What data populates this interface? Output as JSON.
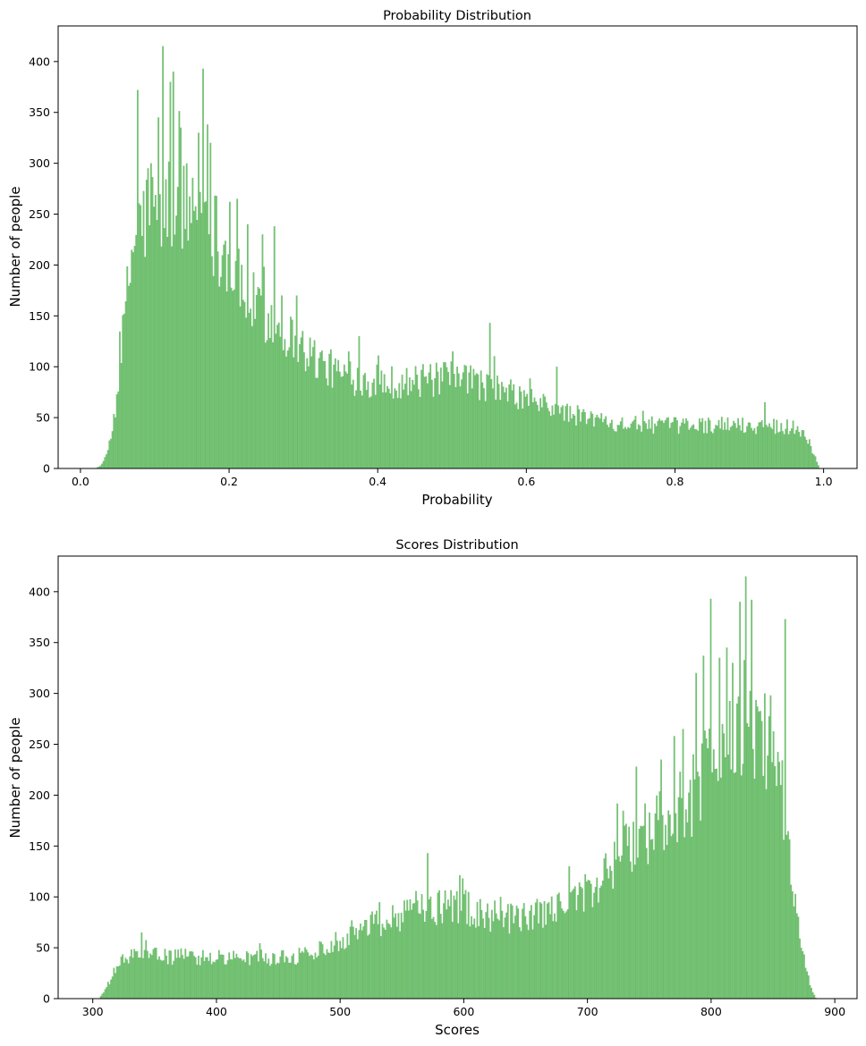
{
  "figure": {
    "bar_color": "#5cb85c",
    "bar_edge_color": "#2e8b2e",
    "bar_opacity": 0.85
  },
  "chart_data": [
    {
      "type": "histogram",
      "title": "Probability Distribution",
      "xlabel": "Probability",
      "ylabel": "Number of people",
      "xlim": [
        -0.03,
        1.045
      ],
      "ylim": [
        0,
        435
      ],
      "xticks": [
        0.0,
        0.2,
        0.4,
        0.6,
        0.8,
        1.0
      ],
      "xtick_labels": [
        "0.0",
        "0.2",
        "0.4",
        "0.6",
        "0.8",
        "1.0"
      ],
      "yticks": [
        0,
        50,
        100,
        150,
        200,
        250,
        300,
        350,
        400
      ],
      "ytick_labels": [
        "0",
        "50",
        "100",
        "150",
        "200",
        "250",
        "300",
        "350",
        "400"
      ],
      "grid": false,
      "legend": "none",
      "bins": 500,
      "range": [
        0.0,
        1.0
      ],
      "profile": [
        [
          0.0,
          0
        ],
        [
          0.02,
          0
        ],
        [
          0.03,
          4
        ],
        [
          0.04,
          25
        ],
        [
          0.05,
          75
        ],
        [
          0.06,
          150
        ],
        [
          0.07,
          215
        ],
        [
          0.08,
          240
        ],
        [
          0.1,
          255
        ],
        [
          0.12,
          262
        ],
        [
          0.14,
          255
        ],
        [
          0.16,
          260
        ],
        [
          0.18,
          235
        ],
        [
          0.2,
          200
        ],
        [
          0.22,
          170
        ],
        [
          0.25,
          150
        ],
        [
          0.3,
          118
        ],
        [
          0.33,
          100
        ],
        [
          0.36,
          90
        ],
        [
          0.4,
          85
        ],
        [
          0.45,
          85
        ],
        [
          0.5,
          88
        ],
        [
          0.53,
          85
        ],
        [
          0.56,
          78
        ],
        [
          0.6,
          68
        ],
        [
          0.65,
          55
        ],
        [
          0.7,
          47
        ],
        [
          0.75,
          43
        ],
        [
          0.8,
          42
        ],
        [
          0.85,
          43
        ],
        [
          0.9,
          42
        ],
        [
          0.95,
          42
        ],
        [
          0.97,
          38
        ],
        [
          0.98,
          28
        ],
        [
          0.99,
          8
        ],
        [
          0.995,
          0
        ],
        [
          1.0,
          0
        ]
      ],
      "spikes": [
        [
          0.11,
          415
        ],
        [
          0.125,
          390
        ],
        [
          0.12,
          380
        ],
        [
          0.0775,
          372
        ],
        [
          0.165,
          393
        ],
        [
          0.17,
          338
        ],
        [
          0.158,
          330
        ],
        [
          0.135,
          335
        ],
        [
          0.175,
          320
        ],
        [
          0.095,
          300
        ],
        [
          0.09,
          295
        ],
        [
          0.105,
          345
        ],
        [
          0.2,
          262
        ],
        [
          0.21,
          265
        ],
        [
          0.245,
          230
        ],
        [
          0.26,
          238
        ],
        [
          0.55,
          143
        ],
        [
          0.375,
          130
        ],
        [
          0.29,
          170
        ],
        [
          0.27,
          170
        ],
        [
          0.225,
          240
        ],
        [
          0.64,
          100
        ],
        [
          0.5,
          115
        ],
        [
          0.92,
          65
        ]
      ]
    },
    {
      "type": "histogram",
      "title": "Scores Distribution",
      "xlabel": "Scores",
      "ylabel": "Number of people",
      "xlim": [
        272,
        918
      ],
      "ylim": [
        0,
        435
      ],
      "xticks": [
        300,
        400,
        500,
        600,
        700,
        800,
        900
      ],
      "xtick_labels": [
        "300",
        "400",
        "500",
        "600",
        "700",
        "800",
        "900"
      ],
      "yticks": [
        0,
        50,
        100,
        150,
        200,
        250,
        300,
        350,
        400
      ],
      "ytick_labels": [
        "0",
        "50",
        "100",
        "150",
        "200",
        "250",
        "300",
        "350",
        "400"
      ],
      "grid": false,
      "legend": "none",
      "bins": 500,
      "range": [
        300,
        890
      ],
      "profile": [
        [
          300,
          0
        ],
        [
          305,
          0
        ],
        [
          310,
          8
        ],
        [
          315,
          20
        ],
        [
          320,
          33
        ],
        [
          330,
          42
        ],
        [
          350,
          42
        ],
        [
          400,
          40
        ],
        [
          450,
          40
        ],
        [
          470,
          42
        ],
        [
          480,
          47
        ],
        [
          500,
          58
        ],
        [
          520,
          72
        ],
        [
          550,
          82
        ],
        [
          570,
          90
        ],
        [
          600,
          90
        ],
        [
          620,
          82
        ],
        [
          650,
          78
        ],
        [
          680,
          90
        ],
        [
          700,
          100
        ],
        [
          710,
          110
        ],
        [
          725,
          140
        ],
        [
          735,
          155
        ],
        [
          750,
          165
        ],
        [
          770,
          180
        ],
        [
          790,
          205
        ],
        [
          800,
          235
        ],
        [
          820,
          255
        ],
        [
          840,
          258
        ],
        [
          855,
          240
        ],
        [
          862,
          150
        ],
        [
          868,
          95
        ],
        [
          875,
          45
        ],
        [
          880,
          12
        ],
        [
          885,
          0
        ],
        [
          890,
          0
        ]
      ],
      "spikes": [
        [
          828,
          415
        ],
        [
          833,
          392
        ],
        [
          823,
          390
        ],
        [
          860,
          373
        ],
        [
          800,
          393
        ],
        [
          794,
          337
        ],
        [
          807,
          335
        ],
        [
          818,
          330
        ],
        [
          788,
          320
        ],
        [
          843,
          300
        ],
        [
          848,
          298
        ],
        [
          813,
          345
        ],
        [
          777,
          265
        ],
        [
          770,
          258
        ],
        [
          740,
          228
        ],
        [
          760,
          235
        ],
        [
          571,
          143
        ],
        [
          685,
          130
        ],
        [
          730,
          170
        ],
        [
          745,
          170
        ],
        [
          785,
          240
        ],
        [
          630,
          100
        ],
        [
          700,
          115
        ],
        [
          340,
          65
        ]
      ]
    }
  ]
}
